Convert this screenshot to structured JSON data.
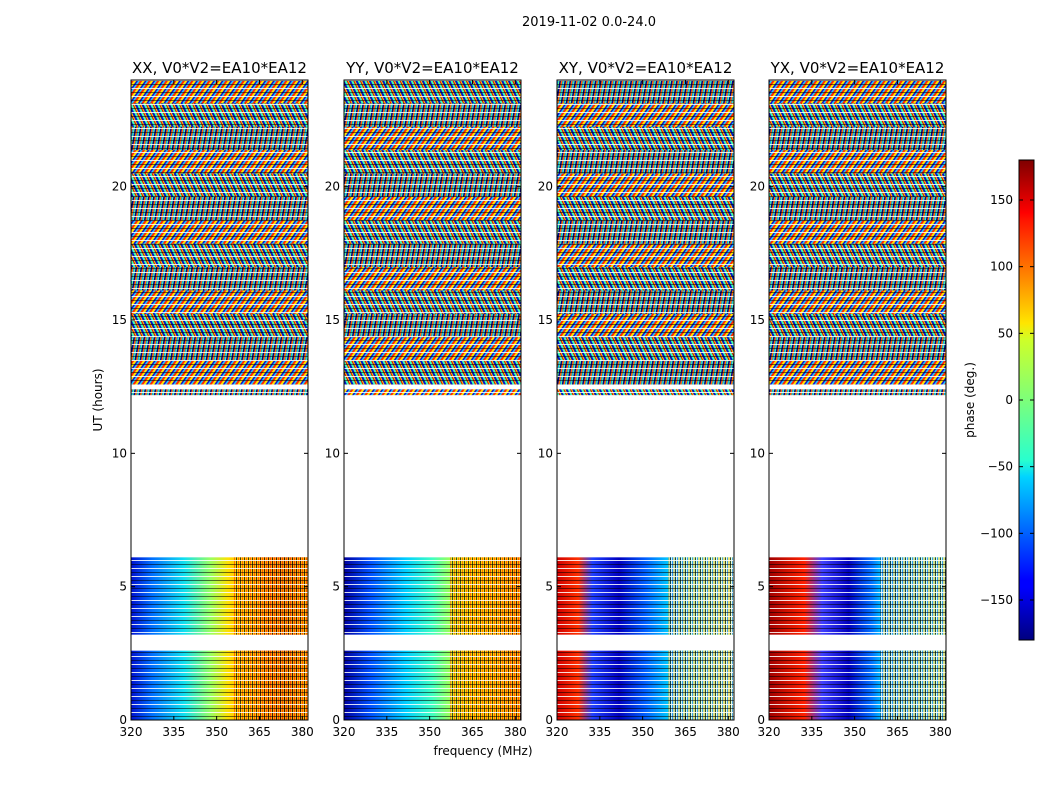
{
  "chart_data": {
    "type": "heatmap",
    "suptitle": "2019-11-02 0.0-24.0",
    "xlabel": "frequency (MHz)",
    "ylabel": "UT (hours)",
    "xlim": [
      320,
      382
    ],
    "ylim": [
      0,
      24
    ],
    "xticks": [
      320,
      335,
      350,
      365,
      380
    ],
    "yticks": [
      0,
      5,
      10,
      15,
      20
    ],
    "panels": [
      {
        "title": "XX, V0*V2=EA10*EA12",
        "low_ut_pattern": "phase rises smoothly from about -150 deg at 320 MHz to about +150 deg near 365-380 MHz, wrapping near the top of the band"
      },
      {
        "title": "YY, V0*V2=EA10*EA12",
        "low_ut_pattern": "phase rises from about -150 deg at 320 MHz to about +50 deg near 365 MHz, then fringes above 365 MHz"
      },
      {
        "title": "XY, V0*V2=EA10*EA12",
        "low_ut_pattern": "phase about +150 deg at 320 MHz falling to about -150 deg near 335 MHz then rising to about -50 deg by 360 MHz; noisy fringes above 362 MHz"
      },
      {
        "title": "YX, V0*V2=EA10*EA12",
        "low_ut_pattern": "phase about +160 deg at 320 MHz falling to about -150 deg near 345 MHz then rising to about -60 deg by 360 MHz; noisy fringes above 362 MHz"
      }
    ],
    "data_segments_ut_hours": [
      [
        0.0,
        2.6
      ],
      [
        3.2,
        6.1
      ],
      [
        12.2,
        12.4
      ],
      [
        12.6,
        24.0
      ]
    ],
    "gap_ut_hours": [
      6.1,
      12.2
    ],
    "colorbar": {
      "label": "phase (deg.)",
      "range": [
        -180,
        180
      ],
      "ticks": [
        -150,
        -100,
        -50,
        0,
        50,
        100,
        150
      ],
      "tick_labels": [
        "−150",
        "−100",
        "−50",
        "0",
        "50",
        "100",
        "150"
      ],
      "colormap": "jet"
    }
  }
}
